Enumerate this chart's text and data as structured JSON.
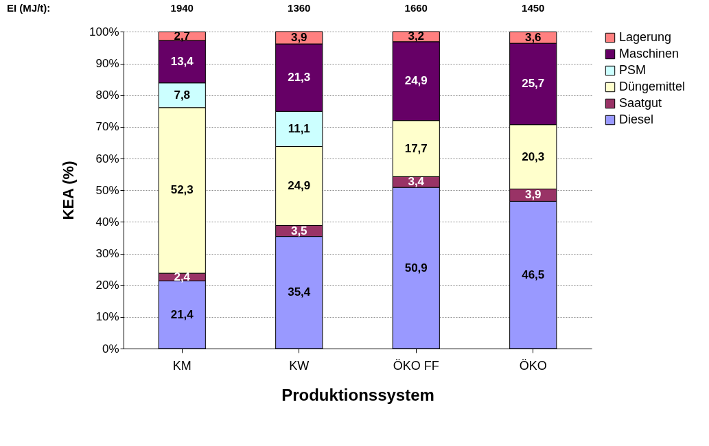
{
  "chart_data": {
    "type": "bar",
    "stacked": true,
    "categories": [
      "KM",
      "KW",
      "ÖKO FF",
      "ÖKO"
    ],
    "xlabel": "Produktionssystem",
    "ylabel": "KEA (%)",
    "ylim": [
      0,
      100.1
    ],
    "yticks": [
      {
        "value": 0,
        "label": "0%"
      },
      {
        "value": 10,
        "label": "10%"
      },
      {
        "value": 20,
        "label": "20%"
      },
      {
        "value": 30,
        "label": "30%"
      },
      {
        "value": 40,
        "label": "40%"
      },
      {
        "value": 50,
        "label": "50%"
      },
      {
        "value": 60,
        "label": "60%"
      },
      {
        "value": 70,
        "label": "70%"
      },
      {
        "value": 80,
        "label": "80%"
      },
      {
        "value": 90,
        "label": "90%"
      },
      {
        "value": 100,
        "label": "100%"
      }
    ],
    "grid": "y",
    "legend": "right",
    "series": [
      {
        "name": "Diesel",
        "color": "#9999ff",
        "values": [
          21.4,
          35.4,
          50.9,
          46.5
        ],
        "value_labels": [
          "21,4",
          "35,4",
          "50,9",
          "46,5"
        ]
      },
      {
        "name": "Saatgut",
        "color": "#993366",
        "values": [
          2.4,
          3.5,
          3.4,
          3.9
        ],
        "value_labels": [
          "2,4",
          "3,5",
          "3,4",
          "3,9"
        ]
      },
      {
        "name": "Düngemittel",
        "color": "#ffffcc",
        "values": [
          52.3,
          24.9,
          17.7,
          20.3
        ],
        "value_labels": [
          "52,3",
          "24,9",
          "17,7",
          "20,3"
        ]
      },
      {
        "name": "PSM",
        "color": "#ccffff",
        "values": [
          7.8,
          11.1,
          null,
          null
        ],
        "value_labels": [
          "7,8",
          "11,1",
          null,
          null
        ]
      },
      {
        "name": "Maschinen",
        "color": "#660066",
        "values": [
          13.4,
          21.3,
          24.9,
          25.7
        ],
        "value_labels": [
          "13,4",
          "21,3",
          "24,9",
          "25,7"
        ]
      },
      {
        "name": "Lagerung",
        "color": "#ff8080",
        "values": [
          2.7,
          3.9,
          3.2,
          3.6
        ],
        "value_labels": [
          "2,7",
          "3,9",
          "3,2",
          "3,6"
        ]
      }
    ],
    "annotations": [
      "EI (MJ/t):",
      "1940",
      "1360",
      "1660",
      "1450"
    ]
  }
}
